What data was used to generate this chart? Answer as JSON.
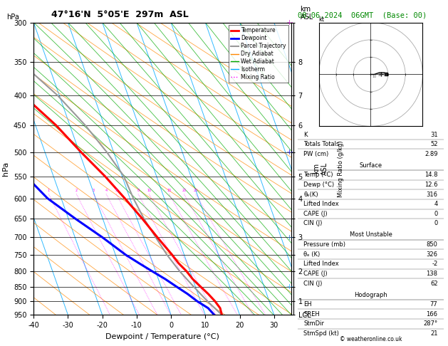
{
  "title_left": "47°16'N  5°05'E  297m  ASL",
  "title_right": "08.06.2024  06GMT  (Base: 00)",
  "xlabel": "Dewpoint / Temperature (°C)",
  "ylabel_left": "hPa",
  "xlim": [
    -40,
    35
  ],
  "pressure_levels": [
    300,
    350,
    400,
    450,
    500,
    550,
    600,
    650,
    700,
    750,
    800,
    850,
    900,
    950
  ],
  "km_labels": {
    "300": "",
    "350": "8",
    "400": "7",
    "450": "6",
    "500": "",
    "550": "5",
    "600": "4",
    "650": "",
    "700": "3",
    "750": "",
    "800": "2",
    "850": "",
    "900": "1",
    "950": "LCL"
  },
  "temp_profile": {
    "pressure": [
      950,
      925,
      900,
      875,
      850,
      825,
      800,
      775,
      750,
      700,
      650,
      600,
      550,
      500,
      450,
      400,
      350,
      300
    ],
    "temp": [
      14.8,
      15.0,
      14.2,
      13.0,
      11.5,
      10.0,
      9.0,
      7.5,
      6.5,
      4.0,
      1.5,
      -1.5,
      -5.0,
      -9.5,
      -14.0,
      -20.5,
      -28.0,
      -37.0
    ]
  },
  "dewp_profile": {
    "pressure": [
      950,
      925,
      900,
      875,
      850,
      825,
      800,
      775,
      750,
      700,
      650,
      600,
      550,
      500,
      450,
      400,
      350,
      300
    ],
    "dewp": [
      12.6,
      11.5,
      9.0,
      7.0,
      4.5,
      2.0,
      -1.0,
      -4.0,
      -7.0,
      -12.0,
      -18.0,
      -24.0,
      -28.0,
      -32.0,
      -36.0,
      -40.0,
      -40.0,
      -40.0
    ]
  },
  "parcel_profile": {
    "pressure": [
      950,
      900,
      850,
      800,
      750,
      700,
      650,
      600,
      550,
      500,
      450,
      400,
      350,
      300
    ],
    "temp": [
      14.8,
      12.0,
      9.5,
      7.0,
      5.0,
      3.5,
      2.0,
      1.0,
      0.5,
      -2.0,
      -5.5,
      -10.5,
      -18.0,
      -28.0
    ]
  },
  "color_temp": "#ff0000",
  "color_dewp": "#0000ff",
  "color_parcel": "#999999",
  "color_dry_adiabat": "#ff8800",
  "color_wet_adiabat": "#00aa00",
  "color_isotherm": "#00aaff",
  "color_mixing": "#ff00ff",
  "mixing_ratio_values": [
    1,
    2,
    3,
    4,
    5,
    8,
    10,
    15,
    20,
    25
  ],
  "stats": {
    "K": 31,
    "Totals_Totals": 52,
    "PW_cm": 2.89,
    "Surface_Temp": 14.8,
    "Surface_Dewp": 12.6,
    "Surface_ThetaE": 316,
    "Surface_LiftedIndex": 4,
    "Surface_CAPE": 0,
    "Surface_CIN": 0,
    "MU_Pressure": 850,
    "MU_ThetaE": 326,
    "MU_LiftedIndex": -2,
    "MU_CAPE": 138,
    "MU_CIN": 62,
    "EH": 77,
    "SREH": 166,
    "StmDir": 287,
    "StmSpd": 21
  },
  "wind_barb_pressures": [
    300,
    500,
    700,
    850
  ],
  "wind_barb_colors": [
    "#cc00cc",
    "#0000ff",
    "#0066cc",
    "#00aaff"
  ],
  "hodograph_u": [
    0,
    2,
    5,
    8,
    9
  ],
  "hodograph_v": [
    0,
    0,
    1,
    1,
    0
  ]
}
